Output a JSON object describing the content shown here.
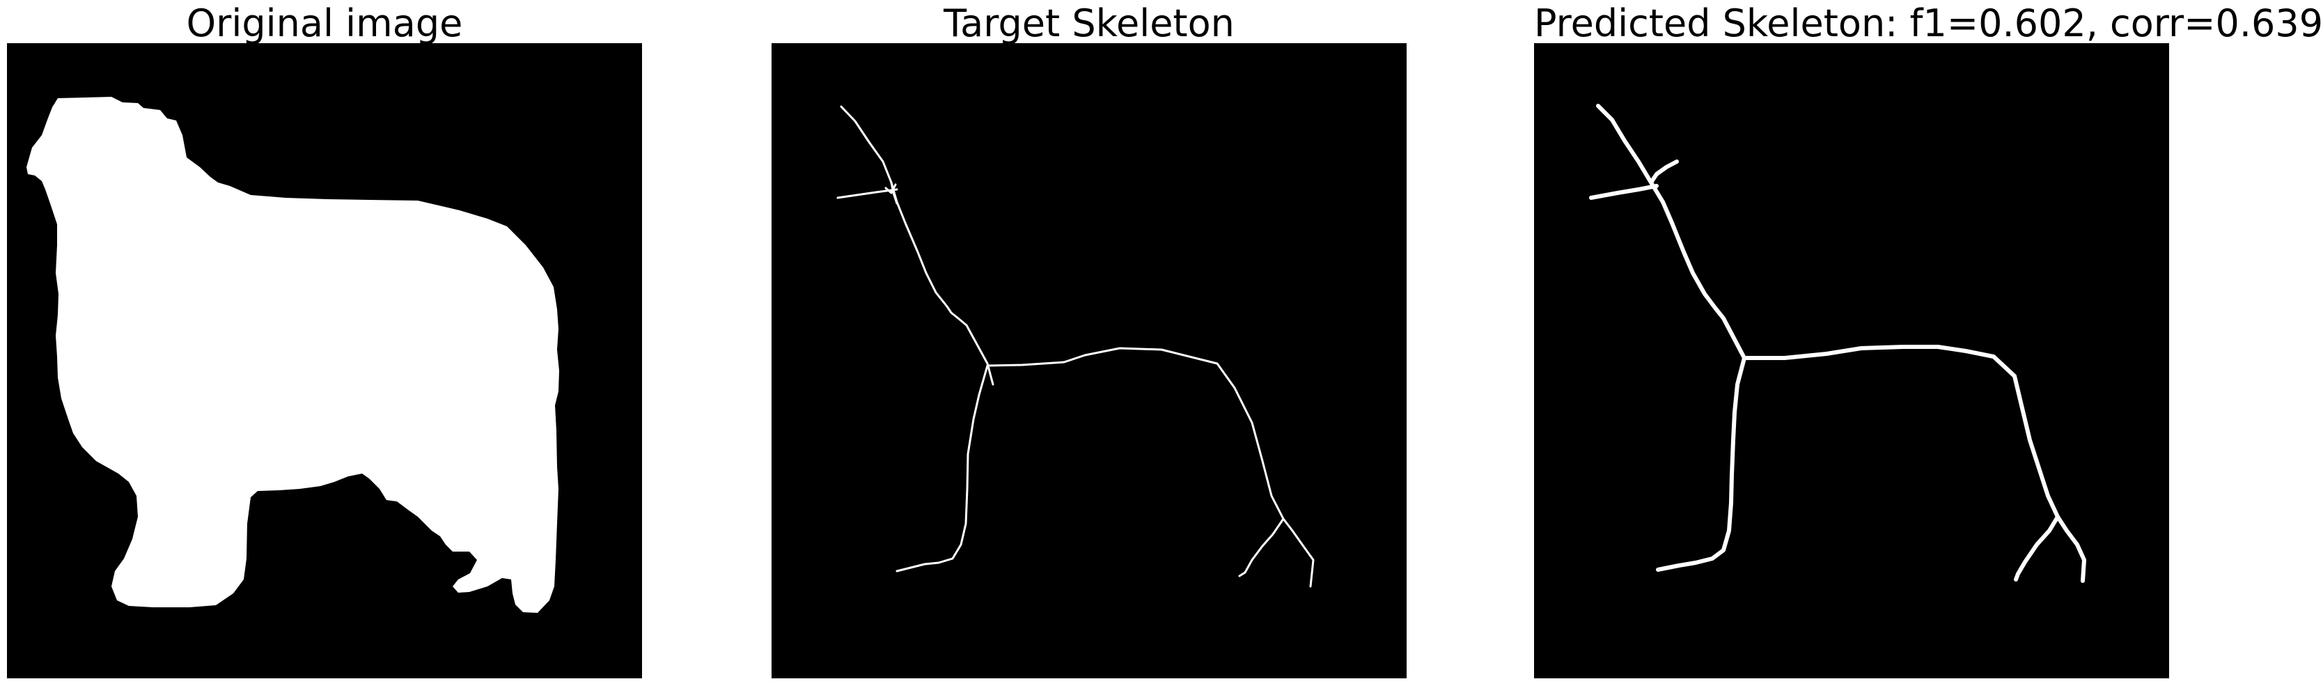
{
  "figure": {
    "background": "#ffffff",
    "image_background": "#000000",
    "foreground": "#ffffff"
  },
  "panels": [
    {
      "title": "Original image",
      "content": "white silhouette of a dog (mask) on black background"
    },
    {
      "title": "Target Skeleton",
      "content": "thin white skeleton lines of the dog silhouette"
    },
    {
      "title": "Predicted Skeleton: f1=0.602, corr=0.639",
      "content": "thicker white predicted skeleton lines"
    }
  ]
}
